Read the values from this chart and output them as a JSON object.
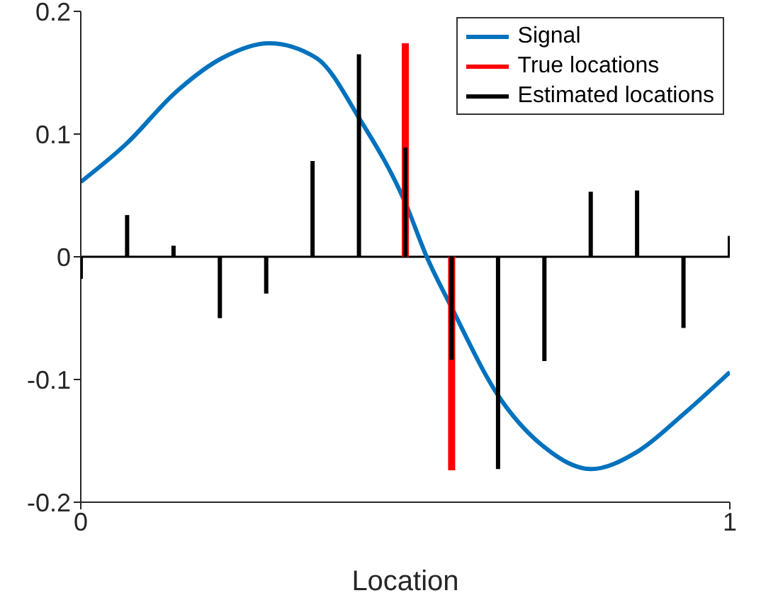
{
  "chart_data": {
    "type": "bar",
    "xlabel": "Location",
    "xlim": [
      0,
      1
    ],
    "xticks": [
      0,
      1
    ],
    "ylim": [
      -0.2,
      0.2
    ],
    "yticks": [
      -0.2,
      -0.1,
      0,
      0.1,
      0.2
    ],
    "grid": false,
    "legend": "top right",
    "marker": "none",
    "x": [
      0,
      0.0714,
      0.1429,
      0.2143,
      0.2857,
      0.3571,
      0.4286,
      0.5,
      0.5714,
      0.6429,
      0.7143,
      0.7857,
      0.8571,
      0.9286,
      1
    ],
    "ref_lines": [
      {
        "axis": "y",
        "value": 0,
        "color": "#000000"
      }
    ],
    "series": [
      {
        "name": "Signal",
        "type": "line",
        "color": "#0072bd",
        "line_style": "solid",
        "x": [
          0,
          0.072,
          0.144,
          0.218,
          0.29,
          0.363,
          0.43,
          0.5,
          0.533,
          0.571,
          0.643,
          0.714,
          0.786,
          0.857,
          0.929,
          1
        ],
        "values": [
          0.061,
          0.093,
          0.133,
          0.162,
          0.174,
          0.162,
          0.112,
          0.044,
          0,
          -0.041,
          -0.113,
          -0.155,
          -0.173,
          -0.159,
          -0.128,
          -0.094
        ]
      },
      {
        "name": "True locations",
        "color": "#ff0000",
        "values": [
          0,
          0,
          0,
          0,
          0,
          0,
          0,
          0.174,
          -0.174,
          0,
          0,
          0,
          0,
          0,
          0
        ]
      },
      {
        "name": "Estimated locations",
        "color": "#000000",
        "values": [
          -0.018,
          0.034,
          0.009,
          -0.05,
          -0.03,
          0.078,
          0.165,
          0.089,
          -0.084,
          -0.173,
          -0.085,
          0.053,
          0.054,
          -0.058,
          0.017
        ]
      }
    ]
  }
}
